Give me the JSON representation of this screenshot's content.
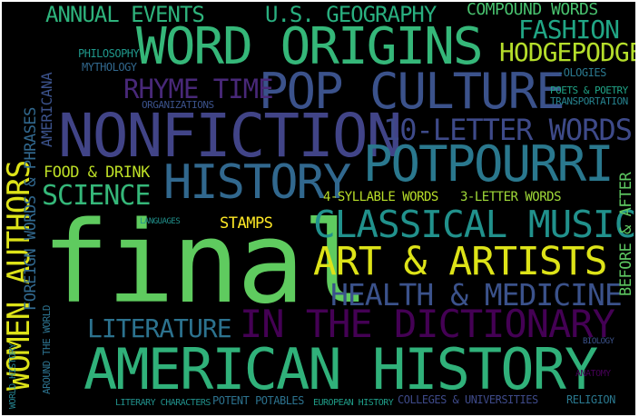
{
  "cloud": {
    "words": [
      {
        "text": "final",
        "color": "#5fcb5f"
      },
      {
        "text": "AMERICAN HISTORY",
        "color": "#30b17a"
      },
      {
        "text": "NONFICTION",
        "color": "#414487"
      },
      {
        "text": "WORD ORIGINS",
        "color": "#35b779"
      },
      {
        "text": "POP CULTURE",
        "color": "#3b528b"
      },
      {
        "text": "POTPOURRI",
        "color": "#2a788e"
      },
      {
        "text": "HISTORY",
        "color": "#31688e"
      },
      {
        "text": "IN THE DICTIONARY",
        "color": "#440154"
      },
      {
        "text": "CLASSICAL MUSIC",
        "color": "#21918c"
      },
      {
        "text": "ART & ARTISTS",
        "color": "#dde318"
      },
      {
        "text": "HEALTH & MEDICINE",
        "color": "#3b528b"
      },
      {
        "text": "10-LETTER WORDS",
        "color": "#3e4a89"
      },
      {
        "text": "LITERATURE",
        "color": "#2c728e"
      },
      {
        "text": "SCIENCE",
        "color": "#35b779"
      },
      {
        "text": "RHYME TIME",
        "color": "#482878"
      },
      {
        "text": "HODGEPODGE",
        "color": "#b5de2b"
      },
      {
        "text": "FASHION",
        "color": "#21a685"
      },
      {
        "text": "U.S. GEOGRAPHY",
        "color": "#29af7f"
      },
      {
        "text": "ANNUAL EVENTS",
        "color": "#2eb37c"
      },
      {
        "text": "COMPOUND WORDS",
        "color": "#48c16e"
      },
      {
        "text": "STAMPS",
        "color": "#fde725"
      },
      {
        "text": "FOOD & DRINK",
        "color": "#bddf26"
      },
      {
        "text": "4-SYLLABLE WORDS",
        "color": "#b8de29"
      },
      {
        "text": "3-LETTER WORDS",
        "color": "#a0da39"
      },
      {
        "text": "PHILOSOPHY",
        "color": "#1f988b"
      },
      {
        "text": "MYTHOLOGY",
        "color": "#31688e"
      },
      {
        "text": "ORGANIZATIONS",
        "color": "#3b528b"
      },
      {
        "text": "-OLOGIES",
        "color": "#2a788e"
      },
      {
        "text": "POETS & POETRY",
        "color": "#20a386"
      },
      {
        "text": "TRANSPORTATION",
        "color": "#26828e"
      },
      {
        "text": "LITERARY CHARACTERS",
        "color": "#21918c"
      },
      {
        "text": "POTENT POTABLES",
        "color": "#2c728e"
      },
      {
        "text": "EUROPEAN HISTORY",
        "color": "#1f9e89"
      },
      {
        "text": "COLLEGES & UNIVERSITIES",
        "color": "#3e4a89"
      },
      {
        "text": "RELIGION",
        "color": "#2a788e"
      },
      {
        "text": "LANGUAGES",
        "color": "#21918c"
      },
      {
        "text": "ANATOMY",
        "color": "#440154"
      },
      {
        "text": "BIOLOGY",
        "color": "#3b528b"
      },
      {
        "text": "WOMEN AUTHORS",
        "color": "#dde318"
      },
      {
        "text": "FOREIGN WORDS & PHRASES",
        "color": "#31688e"
      },
      {
        "text": "AMERICANA",
        "color": "#3b528b"
      },
      {
        "text": "WORLD HISTORY",
        "color": "#26828e"
      },
      {
        "text": "AROUND THE WORLD",
        "color": "#2c728e"
      },
      {
        "text": "BEFORE & AFTER",
        "color": "#5ec962"
      }
    ]
  }
}
